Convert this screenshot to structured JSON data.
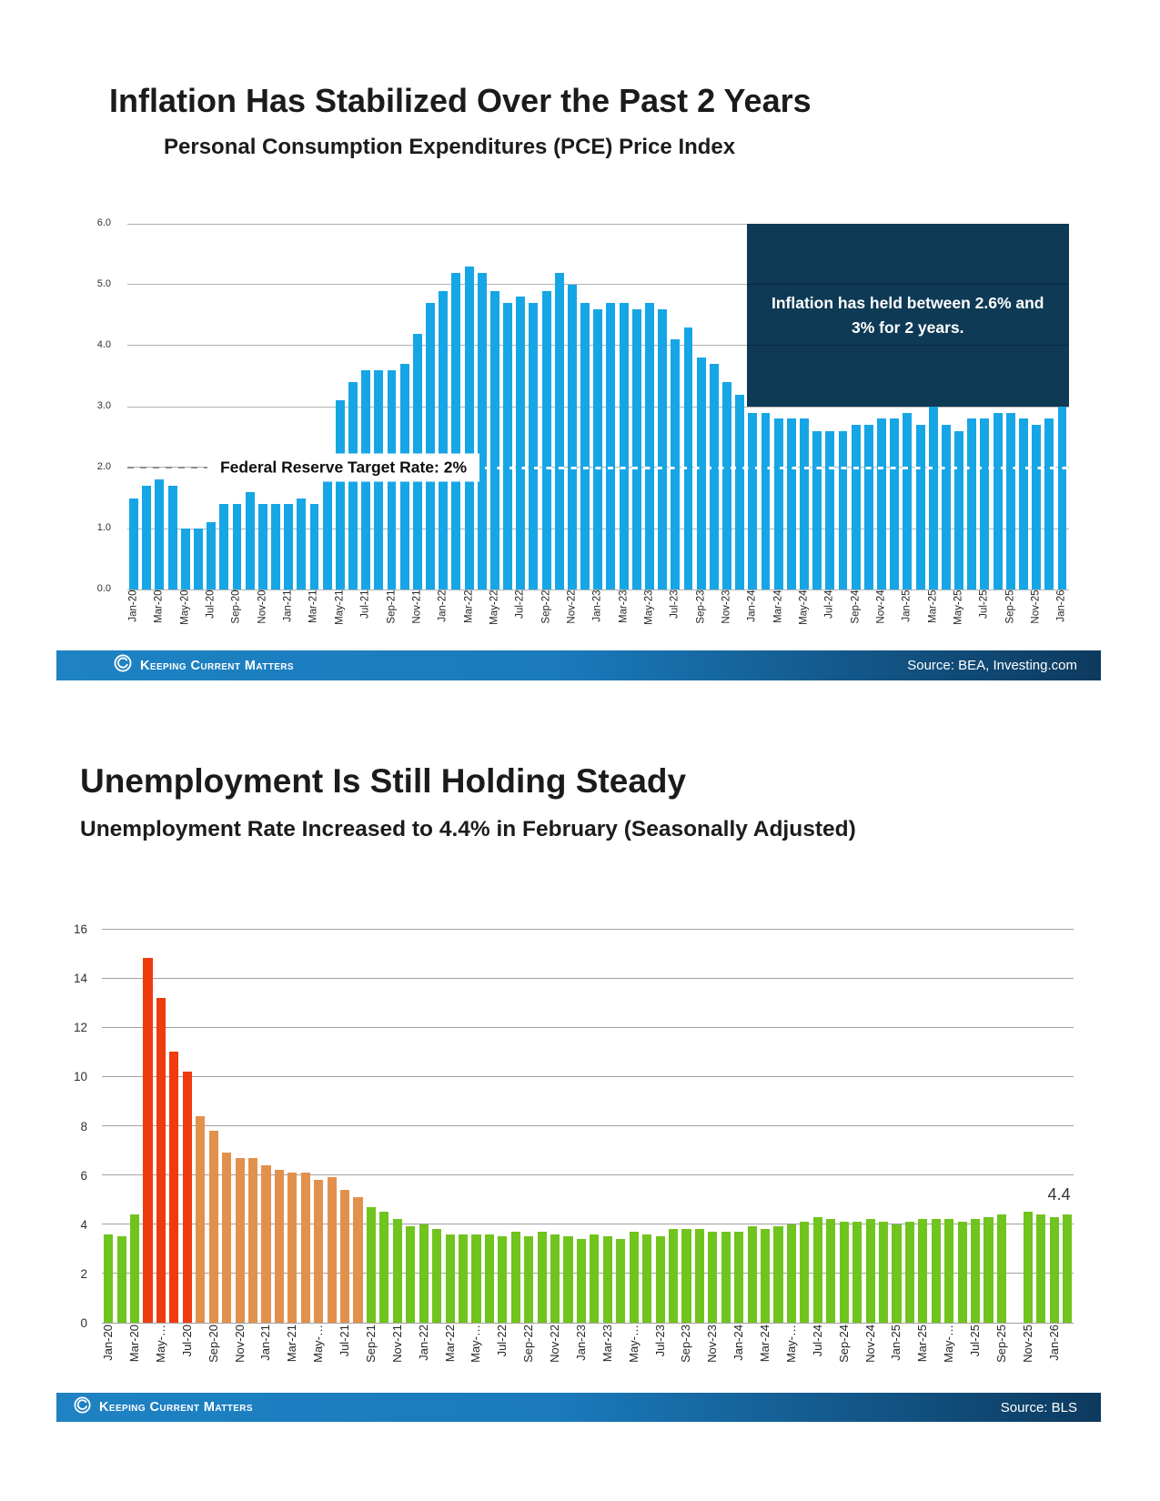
{
  "charts": [
    {
      "title": "Inflation Has Stabilized Over the Past 2 Years",
      "subtitle": "Personal Consumption Expenditures (PCE) Price Index",
      "annotation_line1": "Inflation has held between 2.6% and",
      "annotation_line2": "3% for 2 years.",
      "target_label": "Federal Reserve Target Rate: 2%",
      "brand": "Keeping Current Matters",
      "source": "Source: BEA, Investing.com"
    },
    {
      "title": "Unemployment Is Still Holding Steady",
      "subtitle": "Unemployment Rate Increased to 4.4% in February (Seasonally Adjusted)",
      "end_label": "4.4",
      "brand": "Keeping Current Matters",
      "source": "Source: BLS"
    }
  ],
  "brand_colors": {
    "footer_gradient_left": "#1e82c3",
    "footer_gradient_right": "#0d3a5f",
    "annotation_navy": "#0e3a55"
  },
  "chart_data": [
    {
      "type": "bar",
      "title": "Inflation Has Stabilized Over the Past 2 Years",
      "subtitle": "Personal Consumption Expenditures (PCE) Price Index",
      "xlabel": "",
      "ylabel": "",
      "ylim": [
        0,
        6
      ],
      "grid": true,
      "n_bars": 73,
      "x_range": "Jan-20 to Jan-26 (monthly)",
      "bar_color": "#16a6e6",
      "yticks": [
        {
          "v": 6,
          "label": "6.0"
        },
        {
          "v": 5,
          "label": "5.0"
        },
        {
          "v": 4,
          "label": "4.0"
        },
        {
          "v": 3,
          "label": "3.0"
        },
        {
          "v": 2,
          "label": "2.0"
        },
        {
          "v": 1,
          "label": "1.0"
        },
        {
          "v": 0,
          "label": "0.0"
        }
      ],
      "tick_labels": [
        "Jan-20",
        "Mar-20",
        "May-20",
        "Jul-20",
        "Sep-20",
        "Nov-20",
        "Jan-21",
        "Mar-21",
        "May-21",
        "Jul-21",
        "Sep-21",
        "Nov-21",
        "Jan-22",
        "Mar-22",
        "May-22",
        "Jul-22",
        "Sep-22",
        "Nov-22",
        "Jan-23",
        "Mar-23",
        "May-23",
        "Jul-23",
        "Sep-23",
        "Nov-23",
        "Jan-24",
        "Mar-24",
        "May-24",
        "Jul-24",
        "Sep-24",
        "Nov-24",
        "Jan-25",
        "Mar-25",
        "May-25",
        "Jul-25",
        "Sep-25",
        "Nov-25",
        "Jan-26"
      ],
      "values": [
        1.5,
        1.7,
        1.8,
        1.7,
        1.0,
        1.0,
        1.1,
        1.4,
        1.4,
        1.6,
        1.4,
        1.4,
        1.4,
        1.5,
        1.4,
        2.1,
        3.1,
        3.4,
        3.6,
        3.6,
        3.6,
        3.7,
        4.2,
        4.7,
        4.9,
        5.2,
        5.3,
        5.2,
        4.9,
        4.7,
        4.8,
        4.7,
        4.9,
        5.2,
        5.0,
        4.7,
        4.6,
        4.7,
        4.7,
        4.6,
        4.7,
        4.6,
        4.1,
        4.3,
        3.8,
        3.7,
        3.4,
        3.2,
        2.9,
        2.9,
        2.8,
        2.8,
        2.8,
        2.6,
        2.6,
        2.6,
        2.7,
        2.7,
        2.8,
        2.8,
        2.9,
        2.7,
        3.0,
        2.7,
        2.6,
        2.8,
        2.8,
        2.9,
        2.9,
        2.8,
        2.7,
        2.8,
        3.0
      ],
      "target_line": {
        "value": 2.0,
        "label": "Federal Reserve Target Rate: 2%"
      },
      "annotation": {
        "text": "Inflation has held between 2.6% and 3% for 2 years.",
        "start_bar_index": 48,
        "covers": "Jan-24 to Jan-26",
        "top_value": 6.0,
        "bottom_value": 3.0,
        "color": "#0e3a55"
      },
      "legend_position": "none",
      "source": "Source: BEA, Investing.com"
    },
    {
      "type": "bar",
      "title": "Unemployment Is Still Holding Steady",
      "subtitle": "Unemployment Rate Increased to 4.4% in February (Seasonally Adjusted)",
      "xlabel": "",
      "ylabel": "",
      "ylim": [
        0,
        16
      ],
      "grid": true,
      "n_bars": 74,
      "x_range": "Jan-20 to Feb-26 (monthly, Oct-25 missing)",
      "missing_months": [
        "Oct-25"
      ],
      "yticks": [
        {
          "v": 16,
          "label": "16"
        },
        {
          "v": 14,
          "label": "14"
        },
        {
          "v": 12,
          "label": "12"
        },
        {
          "v": 10,
          "label": "10"
        },
        {
          "v": 8,
          "label": "8"
        },
        {
          "v": 6,
          "label": "6"
        },
        {
          "v": 4,
          "label": "4"
        },
        {
          "v": 2,
          "label": "2"
        },
        {
          "v": 0,
          "label": "0"
        }
      ],
      "tick_labels": [
        "Jan-20",
        "Mar-20",
        "May-…",
        "Jul-20",
        "Sep-20",
        "Nov-20",
        "Jan-21",
        "Mar-21",
        "May-…",
        "Jul-21",
        "Sep-21",
        "Nov-21",
        "Jan-22",
        "Mar-22",
        "May-…",
        "Jul-22",
        "Sep-22",
        "Nov-22",
        "Jan-23",
        "Mar-23",
        "May-…",
        "Jul-23",
        "Sep-23",
        "Nov-23",
        "Jan-24",
        "Mar-24",
        "May-…",
        "Jul-24",
        "Sep-24",
        "Nov-24",
        "Jan-25",
        "Mar-25",
        "May-…",
        "Jul-25",
        "Sep-25",
        "Nov-25",
        "Jan-26"
      ],
      "values": [
        3.6,
        3.5,
        4.4,
        14.8,
        13.2,
        11.0,
        10.2,
        8.4,
        7.8,
        6.9,
        6.7,
        6.7,
        6.4,
        6.2,
        6.1,
        6.1,
        5.8,
        5.9,
        5.4,
        5.1,
        4.7,
        4.5,
        4.2,
        3.9,
        4.0,
        3.8,
        3.6,
        3.6,
        3.6,
        3.6,
        3.5,
        3.7,
        3.5,
        3.7,
        3.6,
        3.5,
        3.4,
        3.6,
        3.5,
        3.4,
        3.7,
        3.6,
        3.5,
        3.8,
        3.8,
        3.8,
        3.7,
        3.7,
        3.7,
        3.9,
        3.8,
        3.9,
        4.0,
        4.1,
        4.3,
        4.2,
        4.1,
        4.1,
        4.2,
        4.1,
        4.0,
        4.1,
        4.2,
        4.2,
        4.2,
        4.1,
        4.2,
        4.3,
        4.4,
        null,
        4.5,
        4.4,
        4.3,
        4.4
      ],
      "color_ranges": [
        {
          "start": 0,
          "end": 2,
          "color": "#70c41e"
        },
        {
          "start": 3,
          "end": 6,
          "color": "#ee3c0f"
        },
        {
          "start": 7,
          "end": 19,
          "color": "#e2914d"
        },
        {
          "start": 20,
          "end": 73,
          "color": "#70c41e"
        }
      ],
      "end_label": {
        "text": "4.4",
        "bar_index": 73
      },
      "legend_position": "none",
      "source": "Source: BLS"
    }
  ]
}
